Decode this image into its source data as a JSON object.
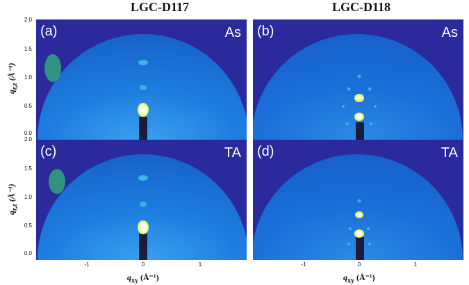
{
  "columns": [
    "LGC-D117",
    "LGC-D118"
  ],
  "panels": [
    {
      "label": "(a)",
      "condition": "As"
    },
    {
      "label": "(b)",
      "condition": "As"
    },
    {
      "label": "(c)",
      "condition": "TA"
    },
    {
      "label": "(d)",
      "condition": "TA"
    }
  ],
  "y_axis": {
    "label": "q",
    "sub": "r,z",
    "unit": "(Å⁻¹)",
    "ticks": [
      "2.0",
      "1.5",
      "1.0",
      "0.5",
      "0.0"
    ]
  },
  "x_axis": {
    "label": "q",
    "sub": "xy",
    "unit": "(Å⁻¹)",
    "ticks": [
      "-1",
      "0",
      "1"
    ]
  },
  "colors": {
    "background": "#2b2a9c",
    "signal": "#1a73d6",
    "hot": "#e6ff66",
    "core": "#ffffff"
  }
}
